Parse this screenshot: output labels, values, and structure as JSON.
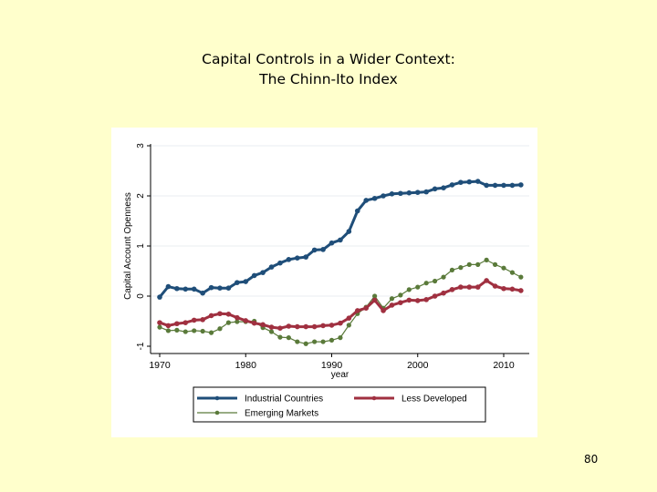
{
  "slide": {
    "title_line1": "Capital Controls in a Wider Context:",
    "title_line2": "The Chinn-Ito Index",
    "page_number": "80",
    "background_color": "#ffffcc"
  },
  "chart_data": {
    "type": "line",
    "title": "",
    "xlabel": "year",
    "ylabel": "Capital Account Openness",
    "xlim": [
      1970,
      2012
    ],
    "ylim": [
      -1,
      3
    ],
    "x_ticks": [
      1970,
      1980,
      1990,
      2000,
      2010
    ],
    "y_ticks": [
      -1,
      0,
      1,
      2,
      3
    ],
    "grid": "horizontal",
    "legend_position": "bottom",
    "x": [
      1970,
      1971,
      1972,
      1973,
      1974,
      1975,
      1976,
      1977,
      1978,
      1979,
      1980,
      1981,
      1982,
      1983,
      1984,
      1985,
      1986,
      1987,
      1988,
      1989,
      1990,
      1991,
      1992,
      1993,
      1994,
      1995,
      1996,
      1997,
      1998,
      1999,
      2000,
      2001,
      2002,
      2003,
      2004,
      2005,
      2006,
      2007,
      2008,
      2009,
      2010,
      2011,
      2012
    ],
    "series": [
      {
        "name": "Industrial Countries",
        "color": "#1f4e79",
        "line_width": 3,
        "values": [
          -0.02,
          0.19,
          0.15,
          0.14,
          0.14,
          0.06,
          0.17,
          0.16,
          0.16,
          0.27,
          0.29,
          0.41,
          0.47,
          0.58,
          0.66,
          0.73,
          0.76,
          0.78,
          0.92,
          0.93,
          1.06,
          1.12,
          1.29,
          1.7,
          1.91,
          1.95,
          2.0,
          2.04,
          2.05,
          2.06,
          2.07,
          2.08,
          2.14,
          2.16,
          2.22,
          2.27,
          2.28,
          2.29,
          2.21,
          2.21,
          2.21,
          2.21,
          2.22
        ]
      },
      {
        "name": "Less Developed",
        "color": "#a03040",
        "line_width": 3,
        "values": [
          -0.53,
          -0.59,
          -0.55,
          -0.53,
          -0.48,
          -0.47,
          -0.39,
          -0.35,
          -0.36,
          -0.43,
          -0.49,
          -0.54,
          -0.57,
          -0.62,
          -0.64,
          -0.6,
          -0.61,
          -0.61,
          -0.61,
          -0.59,
          -0.58,
          -0.54,
          -0.44,
          -0.29,
          -0.24,
          -0.08,
          -0.29,
          -0.18,
          -0.13,
          -0.08,
          -0.09,
          -0.07,
          0.0,
          0.06,
          0.13,
          0.18,
          0.18,
          0.18,
          0.31,
          0.2,
          0.15,
          0.14,
          0.11
        ]
      },
      {
        "name": "Emerging Markets",
        "color": "#5a7a3a",
        "line_width": 1.2,
        "values": [
          -0.62,
          -0.69,
          -0.68,
          -0.71,
          -0.69,
          -0.7,
          -0.73,
          -0.65,
          -0.53,
          -0.51,
          -0.51,
          -0.5,
          -0.63,
          -0.71,
          -0.82,
          -0.83,
          -0.91,
          -0.95,
          -0.91,
          -0.91,
          -0.88,
          -0.83,
          -0.58,
          -0.35,
          -0.22,
          0.0,
          -0.24,
          -0.05,
          0.02,
          0.13,
          0.18,
          0.26,
          0.3,
          0.38,
          0.52,
          0.57,
          0.63,
          0.63,
          0.72,
          0.63,
          0.56,
          0.47,
          0.38
        ]
      }
    ]
  }
}
